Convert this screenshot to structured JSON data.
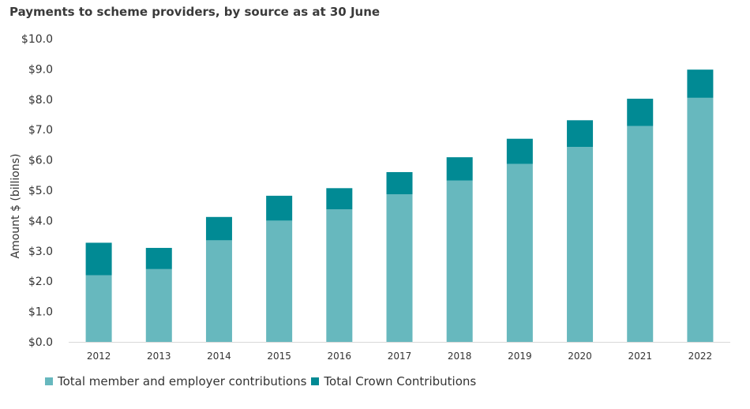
{
  "chart_data": {
    "type": "bar",
    "stacked": true,
    "title": "Payments to scheme providers, by source as at 30 June",
    "xlabel": "",
    "ylabel": "Amount $ (billions)",
    "categories": [
      "2012",
      "2013",
      "2014",
      "2015",
      "2016",
      "2017",
      "2018",
      "2019",
      "2020",
      "2021",
      "2022"
    ],
    "series": [
      {
        "name": "Total member and employer contributions",
        "color": "#67b8be",
        "values": [
          2.2,
          2.4,
          3.35,
          4.0,
          4.37,
          4.87,
          5.32,
          5.87,
          6.43,
          7.12,
          8.05
        ]
      },
      {
        "name": "Total Crown Contributions",
        "color": "#018a94",
        "values": [
          1.07,
          0.7,
          0.77,
          0.82,
          0.7,
          0.73,
          0.77,
          0.83,
          0.88,
          0.9,
          0.93
        ]
      }
    ],
    "ylim": [
      0,
      10
    ],
    "yticks": [
      0,
      1,
      2,
      3,
      4,
      5,
      6,
      7,
      8,
      9,
      10
    ],
    "ytick_labels": [
      "$0.0",
      "$1.0",
      "$2.0",
      "$3.0",
      "$4.0",
      "$5.0",
      "$6.0",
      "$7.0",
      "$8.0",
      "$9.0",
      "$10.0"
    ],
    "grid": false,
    "legend_position": "bottom-left"
  }
}
